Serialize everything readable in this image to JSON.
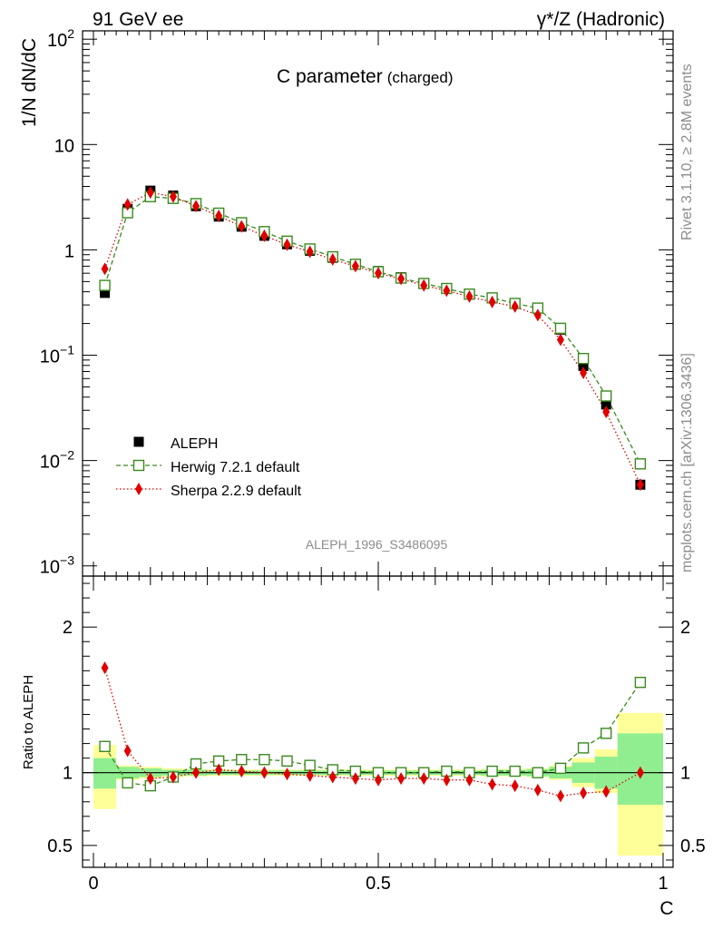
{
  "header": {
    "left": "91 GeV ee",
    "right": "γ*/Z (Hadronic)"
  },
  "plot_title": {
    "main": "C parameter",
    "sub": "(charged)"
  },
  "side_labels": {
    "rivet": "Rivet 3.1.10, ≥ 2.8M events",
    "mcplots": "mcplots.cern.ch [arXiv:1306.3436]"
  },
  "analysis_id": "ALEPH_1996_S3486095",
  "colors": {
    "data": "#000000",
    "herwig": "#3a8a1e",
    "sherpa": "#e00000",
    "band_inner": "#90ee90",
    "band_outer": "#ffff99"
  },
  "chart_data": [
    {
      "type": "scatter",
      "title": "C parameter (charged)",
      "xlabel": "",
      "ylabel": "1/N dN/dC",
      "xlim": [
        0,
        1
      ],
      "ylim": [
        0.0008,
        120
      ],
      "yscale": "log",
      "yticks": [
        {
          "v": 0.001,
          "base": "10",
          "exp": "−3"
        },
        {
          "v": 0.01,
          "base": "10",
          "exp": "−2"
        },
        {
          "v": 0.1,
          "base": "10",
          "exp": "−1"
        },
        {
          "v": 1,
          "base": "1",
          "exp": ""
        },
        {
          "v": 10,
          "base": "10",
          "exp": ""
        },
        {
          "v": 100,
          "base": "10",
          "exp": "2"
        }
      ],
      "legend_position": "middle-left",
      "x": [
        0.02,
        0.06,
        0.1,
        0.14,
        0.18,
        0.22,
        0.26,
        0.3,
        0.34,
        0.38,
        0.42,
        0.46,
        0.5,
        0.54,
        0.58,
        0.62,
        0.66,
        0.7,
        0.74,
        0.78,
        0.82,
        0.86,
        0.9,
        0.96
      ],
      "series": [
        {
          "name": "ALEPH",
          "marker": "square-filled",
          "values": [
            0.39,
            2.45,
            3.65,
            3.28,
            2.6,
            2.07,
            1.66,
            1.36,
            1.13,
            0.98,
            0.84,
            0.73,
            0.63,
            0.55,
            0.48,
            0.43,
            0.38,
            0.35,
            0.31,
            0.28,
            0.175,
            0.079,
            0.034,
            0.0059
          ]
        },
        {
          "name": "Herwig 7.2.1 default",
          "marker": "square-open",
          "values": [
            0.46,
            2.25,
            3.2,
            3.08,
            2.75,
            2.23,
            1.81,
            1.49,
            1.21,
            1.02,
            0.86,
            0.73,
            0.62,
            0.54,
            0.48,
            0.43,
            0.38,
            0.35,
            0.31,
            0.28,
            0.18,
            0.093,
            0.041,
            0.0093
          ]
        },
        {
          "name": "Sherpa 2.2.9 default",
          "marker": "diamond-filled",
          "values": [
            0.66,
            2.7,
            3.5,
            3.2,
            2.6,
            2.1,
            1.67,
            1.36,
            1.12,
            0.96,
            0.81,
            0.7,
            0.6,
            0.53,
            0.46,
            0.41,
            0.36,
            0.32,
            0.29,
            0.24,
            0.14,
            0.068,
            0.029,
            0.0059
          ]
        }
      ]
    },
    {
      "type": "scatter",
      "title": "",
      "xlabel": "C",
      "ylabel": "Ratio to ALEPH",
      "xlim": [
        0,
        1
      ],
      "ylim": [
        0.35,
        2.35
      ],
      "xticks": [
        {
          "v": 0,
          "label": "0"
        },
        {
          "v": 0.5,
          "label": "0.5"
        },
        {
          "v": 1,
          "label": "1"
        }
      ],
      "yticks": [
        {
          "v": 0.5,
          "label": "0.5"
        },
        {
          "v": 1,
          "label": "1"
        },
        {
          "v": 2,
          "label": "2"
        }
      ],
      "x": [
        0.02,
        0.06,
        0.1,
        0.14,
        0.18,
        0.22,
        0.26,
        0.3,
        0.34,
        0.38,
        0.42,
        0.46,
        0.5,
        0.54,
        0.58,
        0.62,
        0.66,
        0.7,
        0.74,
        0.78,
        0.82,
        0.86,
        0.9,
        0.96
      ],
      "bins": [
        [
          0,
          0.04
        ],
        [
          0.04,
          0.08
        ],
        [
          0.08,
          0.12
        ],
        [
          0.12,
          0.16
        ],
        [
          0.16,
          0.2
        ],
        [
          0.2,
          0.24
        ],
        [
          0.24,
          0.28
        ],
        [
          0.28,
          0.32
        ],
        [
          0.32,
          0.36
        ],
        [
          0.36,
          0.4
        ],
        [
          0.4,
          0.44
        ],
        [
          0.44,
          0.48
        ],
        [
          0.48,
          0.52
        ],
        [
          0.52,
          0.56
        ],
        [
          0.56,
          0.6
        ],
        [
          0.6,
          0.64
        ],
        [
          0.64,
          0.68
        ],
        [
          0.68,
          0.72
        ],
        [
          0.72,
          0.76
        ],
        [
          0.76,
          0.8
        ],
        [
          0.8,
          0.84
        ],
        [
          0.84,
          0.88
        ],
        [
          0.88,
          0.92
        ],
        [
          0.92,
          1.0
        ]
      ],
      "band_inner": [
        [
          0.89,
          1.1
        ],
        [
          0.96,
          1.04
        ],
        [
          0.97,
          1.03
        ],
        [
          0.98,
          1.02
        ],
        [
          0.98,
          1.02
        ],
        [
          0.985,
          1.015
        ],
        [
          0.985,
          1.015
        ],
        [
          0.985,
          1.015
        ],
        [
          0.985,
          1.015
        ],
        [
          0.985,
          1.015
        ],
        [
          0.985,
          1.015
        ],
        [
          0.985,
          1.015
        ],
        [
          0.985,
          1.015
        ],
        [
          0.985,
          1.015
        ],
        [
          0.985,
          1.015
        ],
        [
          0.985,
          1.015
        ],
        [
          0.985,
          1.015
        ],
        [
          0.98,
          1.02
        ],
        [
          0.98,
          1.02
        ],
        [
          0.975,
          1.025
        ],
        [
          0.96,
          1.04
        ],
        [
          0.93,
          1.07
        ],
        [
          0.89,
          1.11
        ],
        [
          0.78,
          1.27
        ]
      ],
      "band_outer": [
        [
          0.75,
          1.19
        ],
        [
          0.95,
          1.05
        ],
        [
          0.96,
          1.04
        ],
        [
          0.97,
          1.03
        ],
        [
          0.975,
          1.025
        ],
        [
          0.978,
          1.022
        ],
        [
          0.978,
          1.022
        ],
        [
          0.978,
          1.022
        ],
        [
          0.978,
          1.022
        ],
        [
          0.978,
          1.022
        ],
        [
          0.978,
          1.022
        ],
        [
          0.978,
          1.022
        ],
        [
          0.978,
          1.022
        ],
        [
          0.978,
          1.022
        ],
        [
          0.978,
          1.022
        ],
        [
          0.978,
          1.022
        ],
        [
          0.978,
          1.022
        ],
        [
          0.975,
          1.025
        ],
        [
          0.975,
          1.025
        ],
        [
          0.97,
          1.03
        ],
        [
          0.95,
          1.05
        ],
        [
          0.9,
          1.1
        ],
        [
          0.86,
          1.16
        ],
        [
          0.43,
          1.41
        ]
      ],
      "series": [
        {
          "name": "Herwig 7.2.1 default",
          "marker": "square-open",
          "values": [
            1.18,
            0.93,
            0.91,
            0.97,
            1.06,
            1.08,
            1.09,
            1.09,
            1.08,
            1.05,
            1.02,
            1.01,
            1.0,
            1.0,
            1.0,
            1.01,
            1.0,
            1.01,
            1.01,
            1.0,
            1.03,
            1.17,
            1.27,
            1.62
          ]
        },
        {
          "name": "Sherpa 2.2.9 default",
          "marker": "diamond-filled",
          "values": [
            1.72,
            1.15,
            0.96,
            0.97,
            1.0,
            1.02,
            1.01,
            1.0,
            0.99,
            0.98,
            0.97,
            0.96,
            0.95,
            0.96,
            0.96,
            0.95,
            0.95,
            0.92,
            0.91,
            0.88,
            0.84,
            0.86,
            0.87,
            1.0
          ]
        }
      ]
    }
  ]
}
